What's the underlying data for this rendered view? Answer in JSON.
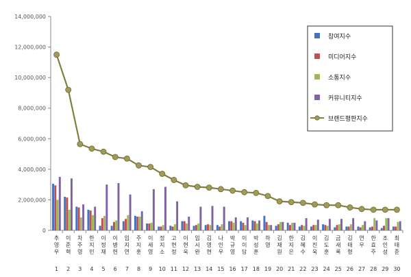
{
  "chart_data": {
    "type": "bar",
    "y_ticks": [
      "0",
      "2,000,000",
      "4,000,000",
      "6,000,000",
      "8,000,000",
      "10,000,000",
      "12,000,000",
      "14,000,000"
    ],
    "ylim": [
      0,
      14000000
    ],
    "grid": false,
    "legend_position": "top-right",
    "ranks": [
      "1",
      "2",
      "3",
      "4",
      "5",
      "6",
      "7",
      "8",
      "9",
      "10",
      "11",
      "12",
      "13",
      "14",
      "15",
      "16",
      "17",
      "18",
      "19",
      "20",
      "21",
      "22",
      "23",
      "24",
      "25",
      "26",
      "27",
      "28",
      "29",
      "30"
    ],
    "categories": [
      "추영우",
      "이준혁",
      "차주영",
      "한지민",
      "이정재",
      "이병헌",
      "임지연",
      "주지훈",
      "이세영",
      "정지소",
      "고현정",
      "이현욱",
      "임시완",
      "김영현",
      "나인우",
      "박규영",
      "이이담",
      "박성훈",
      "하영",
      "김재원",
      "한지은",
      "김혜수",
      "이진욱",
      "김도훈",
      "금새록",
      "김태형",
      "연우",
      "한효주",
      "조인성",
      "최태준"
    ],
    "series": [
      {
        "name": "참여지수",
        "color": "#4472c4",
        "kind": "bar",
        "values": [
          3050000,
          2200000,
          1550000,
          1350000,
          300000,
          300000,
          600000,
          950000,
          450000,
          250000,
          300000,
          600000,
          300000,
          350000,
          350000,
          600000,
          600000,
          650000,
          950000,
          300000,
          500000,
          250000,
          250000,
          400000,
          200000,
          250000,
          250000,
          200000,
          150000,
          250000
        ]
      },
      {
        "name": "미디어지수",
        "color": "#c0504d",
        "kind": "bar",
        "values": [
          2950000,
          2150000,
          1500000,
          1300000,
          800000,
          550000,
          750000,
          900000,
          450000,
          250000,
          250000,
          600000,
          350000,
          400000,
          250000,
          600000,
          500000,
          600000,
          550000,
          400000,
          350000,
          350000,
          350000,
          350000,
          350000,
          250000,
          200000,
          250000,
          300000,
          250000
        ]
      },
      {
        "name": "소통지수",
        "color": "#9bbb59",
        "kind": "bar",
        "values": [
          2000000,
          1350000,
          850000,
          1000000,
          950000,
          650000,
          1000000,
          900000,
          500000,
          350000,
          400000,
          450000,
          450000,
          350000,
          400000,
          500000,
          350000,
          450000,
          350000,
          550000,
          500000,
          300000,
          350000,
          300000,
          400000,
          400000,
          350000,
          800000,
          800000,
          550000
        ]
      },
      {
        "name": "커뮤니티지수",
        "color": "#8064a2",
        "kind": "bar",
        "values": [
          3500000,
          3400000,
          1700000,
          1550000,
          3000000,
          3100000,
          2350000,
          1250000,
          2700000,
          2850000,
          1900000,
          900000,
          1550000,
          1600000,
          1550000,
          850000,
          850000,
          650000,
          350000,
          550000,
          500000,
          800000,
          700000,
          750000,
          750000,
          800000,
          600000,
          650000,
          800000,
          600000
        ]
      },
      {
        "name": "브랜드평판지수",
        "color": "#7f7f3f",
        "kind": "line",
        "values": [
          11500000,
          9200000,
          5650000,
          5350000,
          5150000,
          4800000,
          4700000,
          4250000,
          4150000,
          3700000,
          3300000,
          2950000,
          2850000,
          2800000,
          2700000,
          2600000,
          2500000,
          2450000,
          2250000,
          1900000,
          1850000,
          1800000,
          1700000,
          1650000,
          1650000,
          1500000,
          1400000,
          1350000,
          1350000,
          1350000
        ]
      }
    ]
  }
}
